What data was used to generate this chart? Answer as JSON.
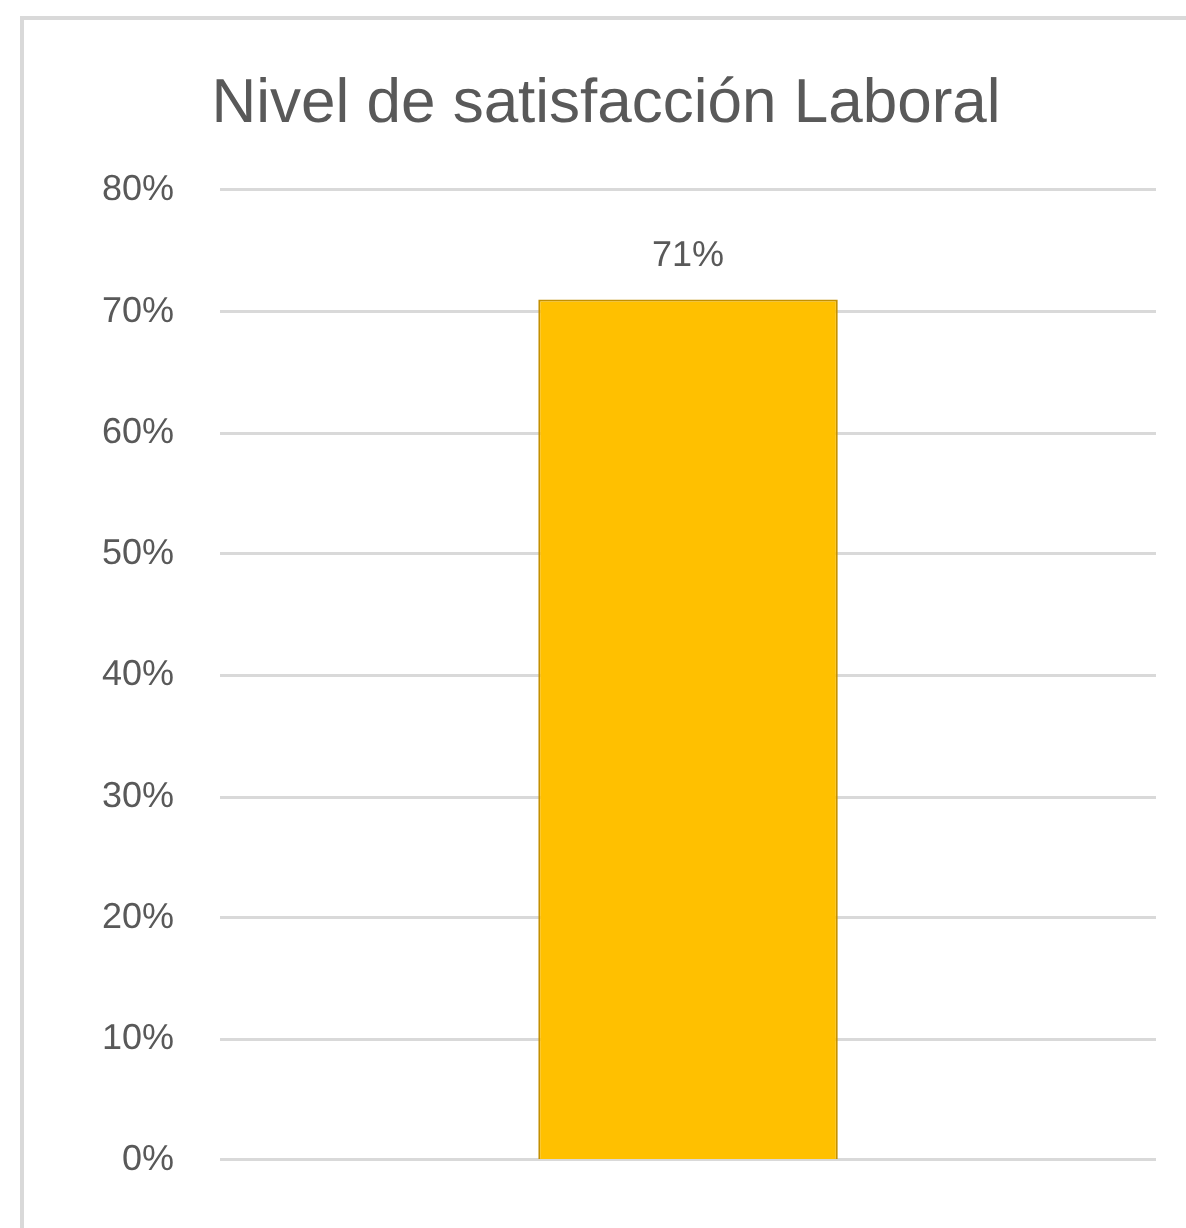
{
  "chart_data": {
    "type": "bar",
    "title": "Nivel de satisfacción Laboral",
    "categories": [
      null
    ],
    "values": [
      71
    ],
    "value_labels": [
      "71%"
    ],
    "color": "#ffc000",
    "ylim": [
      0,
      80
    ],
    "yticks": [
      {
        "value": 0,
        "label": "0%"
      },
      {
        "value": 10,
        "label": "10%"
      },
      {
        "value": 20,
        "label": "20%"
      },
      {
        "value": 30,
        "label": "30%"
      },
      {
        "value": 40,
        "label": "40%"
      },
      {
        "value": 50,
        "label": "50%"
      },
      {
        "value": 60,
        "label": "60%"
      },
      {
        "value": 70,
        "label": "70%"
      },
      {
        "value": 80,
        "label": "80%"
      }
    ],
    "grid": "y",
    "legend": false,
    "tick_labels": "y"
  }
}
